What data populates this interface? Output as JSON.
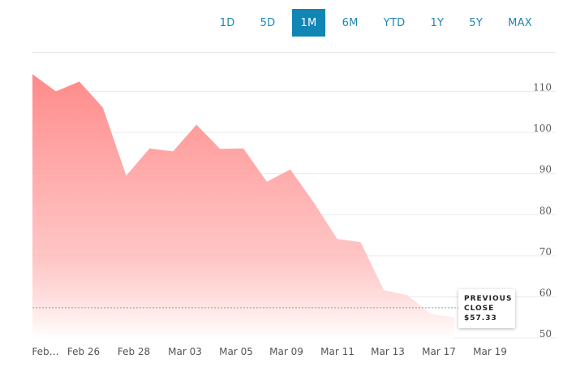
{
  "range_buttons": [
    {
      "label": "1D",
      "active": false
    },
    {
      "label": "5D",
      "active": false
    },
    {
      "label": "1M",
      "active": true
    },
    {
      "label": "6M",
      "active": false
    },
    {
      "label": "YTD",
      "active": false
    },
    {
      "label": "1Y",
      "active": false
    },
    {
      "label": "5Y",
      "active": false
    },
    {
      "label": "MAX",
      "active": false
    }
  ],
  "tooltip": {
    "line1": "PREVIOUS",
    "line2": "CLOSE",
    "value": "$57.33"
  },
  "colors": {
    "fill_top": "#ff8a8a",
    "fill_bottom": "#ffffff",
    "accent": "#1186b5"
  },
  "chart_data": {
    "type": "area",
    "x_labels": [
      "Feb…",
      "Feb 26",
      "Feb 28",
      "Mar 03",
      "Mar 05",
      "Mar 09",
      "Mar 11",
      "Mar 13",
      "Mar 17",
      "Mar 19"
    ],
    "y_ticks": [
      50,
      60,
      70,
      80,
      90,
      100,
      110
    ],
    "ylim": [
      49.6,
      119.6
    ],
    "values": [
      114.2,
      110.0,
      112.4,
      106.1,
      89.5,
      96.1,
      95.4,
      101.9,
      96.0,
      96.1,
      88.0,
      91.0,
      83.0,
      74.1,
      73.3,
      61.6,
      60.4,
      55.8,
      55.0
    ],
    "previous_close": 57.33,
    "grid": true
  }
}
